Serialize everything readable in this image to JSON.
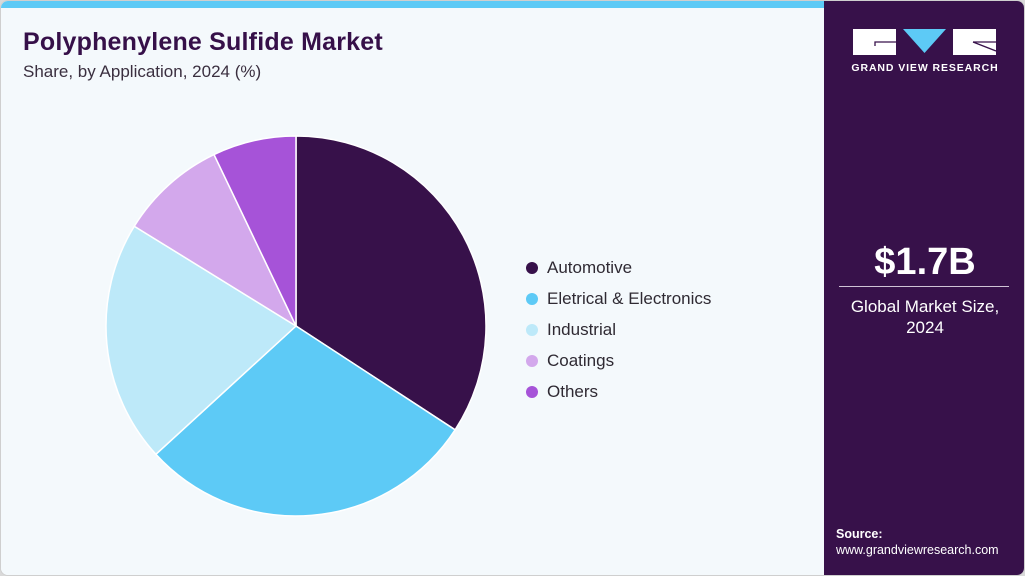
{
  "header": {
    "title": "Polyphenylene Sulfide Market",
    "subtitle": "Share, by Application, 2024 (%)"
  },
  "brand": {
    "name": "GRAND VIEW RESEARCH",
    "colors": {
      "panel": "#37114a",
      "accent": "#5dcaf6"
    }
  },
  "metric": {
    "value": "$1.7B",
    "label_line1": "Global Market Size,",
    "label_line2": "2024"
  },
  "source": {
    "label": "Source:",
    "url": "www.grandviewresearch.com"
  },
  "legend": [
    {
      "label": "Automotive",
      "color": "#37114a"
    },
    {
      "label": "Eletrical & Electronics",
      "color": "#5dcaf6"
    },
    {
      "label": "Industrial",
      "color": "#bde9f9"
    },
    {
      "label": "Coatings",
      "color": "#d3a8ec"
    },
    {
      "label": "Others",
      "color": "#a653d8"
    }
  ],
  "chart_data": {
    "type": "pie",
    "title": "Polyphenylene Sulfide Market",
    "subtitle": "Share, by Application, 2024 (%)",
    "categories": [
      "Automotive",
      "Eletrical & Electronics",
      "Industrial",
      "Coatings",
      "Others"
    ],
    "values": [
      34.2,
      29.0,
      20.6,
      9.1,
      7.1
    ],
    "colors": [
      "#37114a",
      "#5dcaf6",
      "#bde9f9",
      "#d3a8ec",
      "#a653d8"
    ],
    "start_angle": "12 o'clock, clockwise",
    "legend_position": "right",
    "data_labels": false
  }
}
